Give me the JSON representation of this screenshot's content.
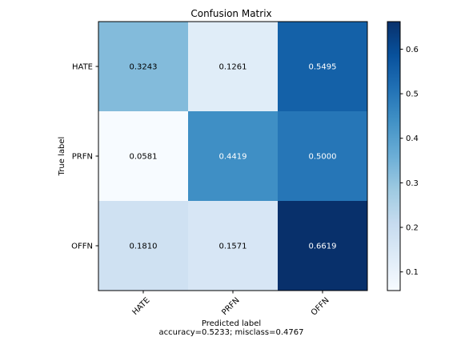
{
  "chart_data": {
    "type": "heatmap",
    "title": "Confusion Matrix",
    "xlabel": "Predicted label",
    "xlabel_sub": "accuracy=0.5233; misclass=0.4767",
    "ylabel": "True label",
    "x_categories": [
      "HATE",
      "PRFN",
      "OFFN"
    ],
    "y_categories": [
      "HATE",
      "PRFN",
      "OFFN"
    ],
    "values": [
      [
        0.3243,
        0.1261,
        0.5495
      ],
      [
        0.0581,
        0.4419,
        0.5
      ],
      [
        0.181,
        0.1571,
        0.6619
      ]
    ],
    "cell_labels": [
      [
        "0.3243",
        "0.1261",
        "0.5495"
      ],
      [
        "0.0581",
        "0.4419",
        "0.5000"
      ],
      [
        "0.1810",
        "0.1571",
        "0.6619"
      ]
    ],
    "colormap": "Blues",
    "colorbar": {
      "vmin": 0.0581,
      "vmax": 0.6619,
      "ticks": [
        0.1,
        0.2,
        0.3,
        0.4,
        0.5,
        0.6
      ],
      "tick_labels": [
        "0.1",
        "0.2",
        "0.3",
        "0.4",
        "0.5",
        "0.6"
      ]
    },
    "grid": false,
    "legend": "colorbar-right"
  }
}
